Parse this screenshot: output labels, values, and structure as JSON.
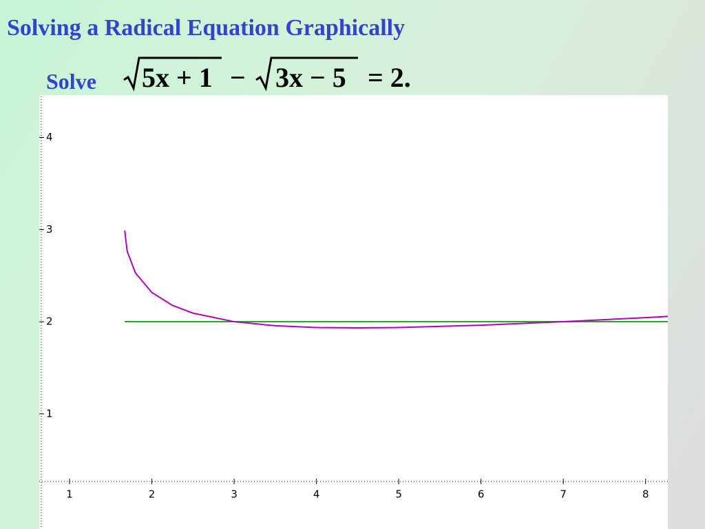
{
  "chart_data": {
    "type": "line",
    "title": "Solving a Radical Equation Graphically",
    "prompt": "Solve",
    "equation": {
      "radicand_1": "5x + 1",
      "operator": "−",
      "radicand_2": "3x − 5",
      "rhs": "= 2."
    },
    "x": [
      1.67,
      1.7,
      1.8,
      2,
      2.25,
      2.5,
      3,
      3.5,
      4,
      4.5,
      5,
      6,
      7,
      8,
      8.27
    ],
    "series": [
      {
        "color": "#b000c0",
        "values": [
          2.99,
          2.766,
          2.53,
          2.317,
          2.177,
          2.093,
          2,
          1.956,
          1.937,
          1.933,
          1.937,
          1.962,
          2,
          2.044,
          2.057
        ]
      },
      {
        "color": "#22aa22",
        "values": [
          2,
          2,
          2,
          2,
          2,
          2,
          2,
          2,
          2,
          2,
          2,
          2,
          2,
          2,
          2
        ]
      }
    ],
    "xlim": [
      0.64,
      8.27
    ],
    "ylim": [
      -0.25,
      4.46
    ],
    "xticks": [
      1,
      2,
      3,
      4,
      5,
      6,
      7,
      8
    ],
    "yticks": [
      1,
      2,
      3,
      4
    ]
  }
}
